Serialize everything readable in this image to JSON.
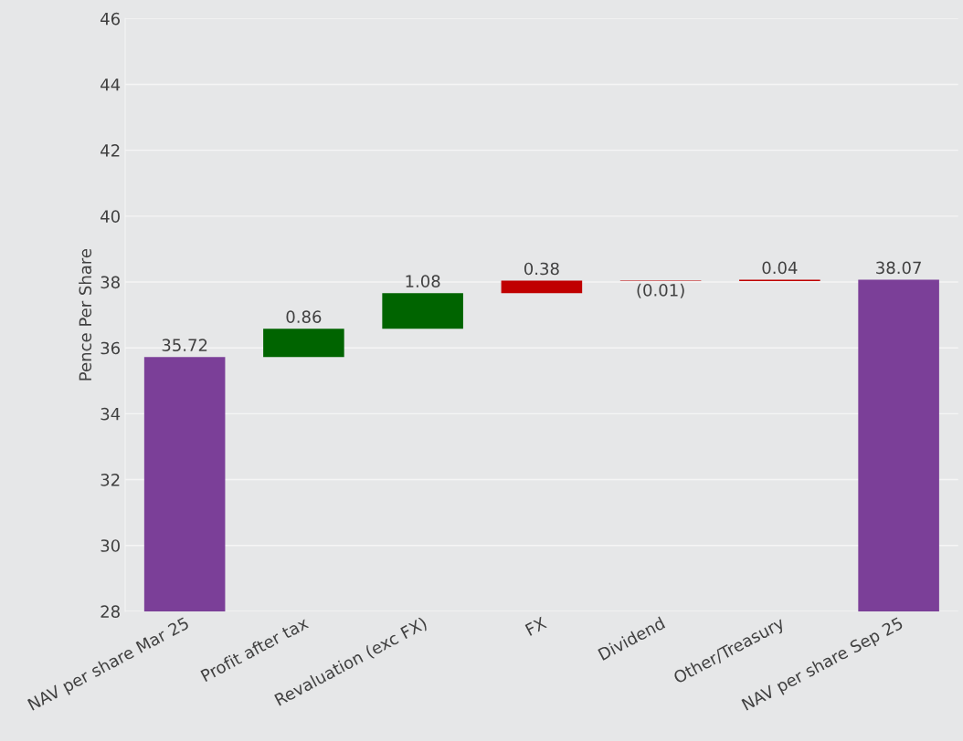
{
  "chart_data": {
    "type": "bar",
    "ylabel": "Pence Per Share",
    "categories": [
      "NAV per share Mar 25",
      "Profit after tax",
      "Revaluation (exc FX)",
      "FX",
      "Dividend",
      "Other/Treasury",
      "NAV per share Sep 25"
    ],
    "values": [
      35.72,
      0.86,
      1.08,
      0.38,
      -0.01,
      0.04,
      38.07
    ],
    "base": [
      0,
      35.72,
      36.58,
      37.66,
      38.04,
      38.03,
      0
    ],
    "colors": [
      "#7b3f98",
      "#006400",
      "#006400",
      "#c00000",
      "#c00000",
      "#c00000",
      "#7b3f98"
    ],
    "value_labels": [
      "35.72",
      "0.86",
      "1.08",
      "0.38",
      "(0.01)",
      "0.04",
      "38.07"
    ],
    "ylim": [
      28,
      46
    ],
    "yticks": [
      28,
      30,
      32,
      34,
      36,
      38,
      40,
      42,
      44,
      46
    ],
    "grid": "y",
    "legend": false
  }
}
